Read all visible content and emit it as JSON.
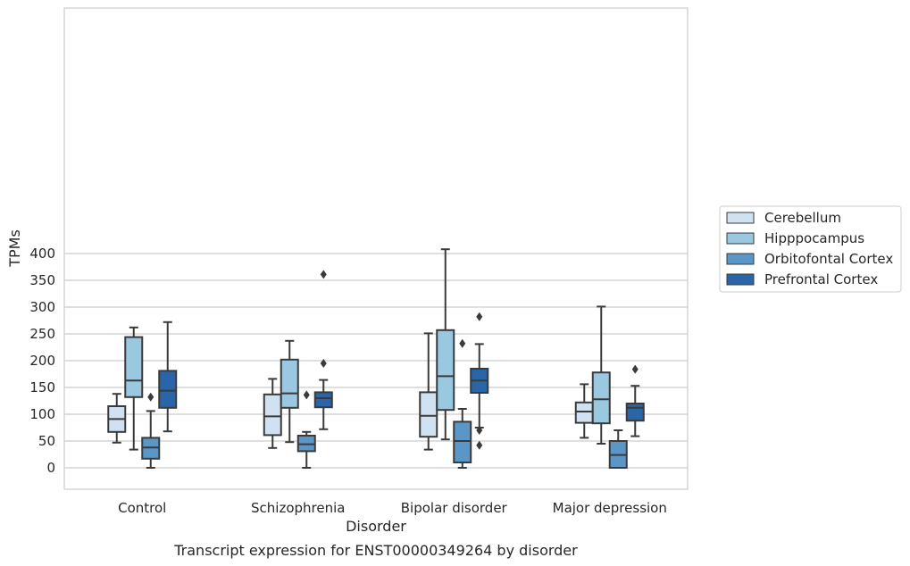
{
  "chart_data": {
    "type": "box",
    "caption": "Transcript expression for ENST00000349264 by disorder",
    "xlabel": "Disorder",
    "ylabel": "TPMs",
    "ylim": [
      -20,
      430
    ],
    "yticks": [
      0,
      50,
      100,
      150,
      200,
      250,
      300,
      350,
      400
    ],
    "grid": "horizontal",
    "legend_position": "right",
    "categories": [
      "Control",
      "Schizophrenia",
      "Bipolar disorder",
      "Major depression"
    ],
    "series": [
      {
        "name": "Cerebellum",
        "color": "#d0e1f2",
        "boxes": [
          {
            "whisker_low": 47,
            "q1": 67,
            "median": 91,
            "q3": 115,
            "whisker_high": 138,
            "outliers": []
          },
          {
            "whisker_low": 37,
            "q1": 61,
            "median": 96,
            "q3": 137,
            "whisker_high": 166,
            "outliers": []
          },
          {
            "whisker_low": 34,
            "q1": 58,
            "median": 97,
            "q3": 141,
            "whisker_high": 251,
            "outliers": []
          },
          {
            "whisker_low": 56,
            "q1": 84,
            "median": 105,
            "q3": 122,
            "whisker_high": 156,
            "outliers": []
          }
        ]
      },
      {
        "name": "Hipppocampus",
        "color": "#9ac8e0",
        "boxes": [
          {
            "whisker_low": 34,
            "q1": 132,
            "median": 163,
            "q3": 244,
            "whisker_high": 262,
            "outliers": []
          },
          {
            "whisker_low": 48,
            "q1": 112,
            "median": 139,
            "q3": 202,
            "whisker_high": 237,
            "outliers": []
          },
          {
            "whisker_low": 53,
            "q1": 108,
            "median": 171,
            "q3": 257,
            "whisker_high": 408,
            "outliers": []
          },
          {
            "whisker_low": 45,
            "q1": 83,
            "median": 128,
            "q3": 178,
            "whisker_high": 301,
            "outliers": []
          }
        ]
      },
      {
        "name": "Orbitofontal Cortex",
        "color": "#5a96c6",
        "boxes": [
          {
            "whisker_low": 0,
            "q1": 17,
            "median": 38,
            "q3": 56,
            "whisker_high": 106,
            "outliers": [
              132
            ]
          },
          {
            "whisker_low": 0,
            "q1": 31,
            "median": 44,
            "q3": 60,
            "whisker_high": 67,
            "outliers": [
              136
            ]
          },
          {
            "whisker_low": 0,
            "q1": 10,
            "median": 50,
            "q3": 86,
            "whisker_high": 110,
            "outliers": [
              232
            ]
          },
          {
            "whisker_low": 0,
            "q1": 0,
            "median": 24,
            "q3": 50,
            "whisker_high": 70,
            "outliers": []
          }
        ]
      },
      {
        "name": "Prefrontal Cortex",
        "color": "#2a65a8",
        "boxes": [
          {
            "whisker_low": 68,
            "q1": 112,
            "median": 144,
            "q3": 181,
            "whisker_high": 272,
            "outliers": []
          },
          {
            "whisker_low": 72,
            "q1": 113,
            "median": 130,
            "q3": 141,
            "whisker_high": 164,
            "outliers": [
              195,
              361
            ]
          },
          {
            "whisker_low": 75,
            "q1": 140,
            "median": 163,
            "q3": 185,
            "whisker_high": 231,
            "outliers": [
              42,
              70,
              282
            ]
          },
          {
            "whisker_low": 59,
            "q1": 88,
            "median": 112,
            "q3": 120,
            "whisker_high": 153,
            "outliers": [
              184
            ]
          }
        ]
      }
    ]
  }
}
